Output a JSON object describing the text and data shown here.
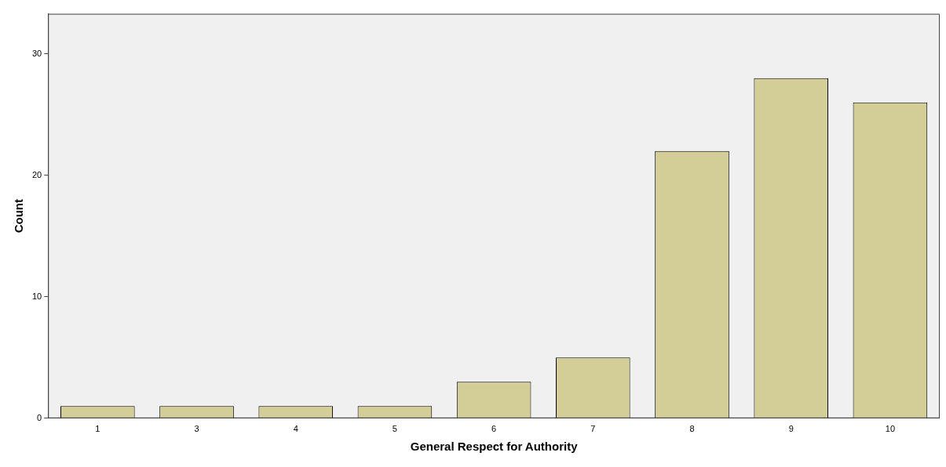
{
  "chart_data": {
    "type": "bar",
    "xlabel": "General Respect for Authority",
    "ylabel": "Count",
    "categories": [
      "1",
      "3",
      "4",
      "5",
      "6",
      "7",
      "8",
      "9",
      "10"
    ],
    "values": [
      1,
      1,
      1,
      1,
      3,
      5,
      22,
      28,
      26
    ],
    "color": "#d3ce97",
    "ylim": [
      0,
      33.3
    ],
    "yticks": [
      0,
      10,
      20,
      30
    ],
    "grid": false,
    "legend": false
  }
}
